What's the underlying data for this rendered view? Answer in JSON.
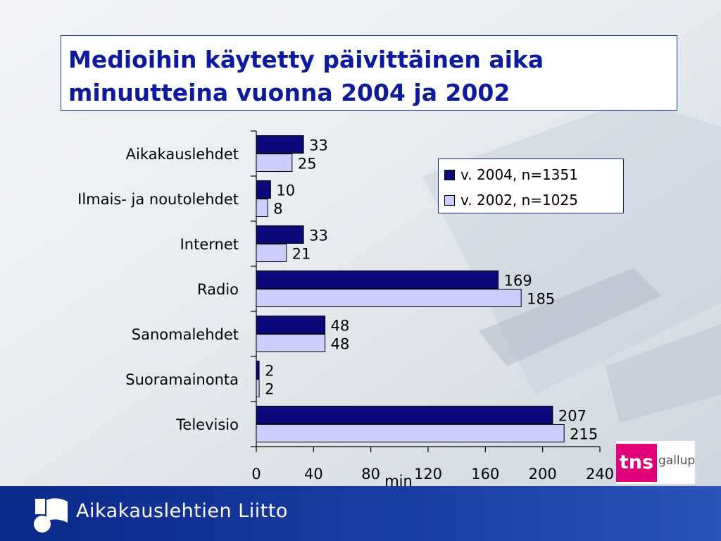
{
  "title": "Medioihin käytetty päivittäinen aika minuutteina vuonna 2004 ja 2002",
  "footer": {
    "org_name": "Aikakauslehtien Liitto"
  },
  "logo": {
    "tns_mark": "tns",
    "tns_word": "gallup",
    "tns_color": "#e2007a"
  },
  "colors": {
    "title": "#0d1a9e",
    "series_2004": "#0a0a7a",
    "series_2002": "#ccccff"
  },
  "chart_data": {
    "type": "bar",
    "orientation": "horizontal",
    "categories": [
      "Aikakauslehdet",
      "Ilmais- ja noutolehdet",
      "Internet",
      "Radio",
      "Sanomalehdet",
      "Suoramainonta",
      "Televisio"
    ],
    "series": [
      {
        "name": "v. 2004, n=1351",
        "values": [
          33,
          10,
          33,
          169,
          48,
          2,
          207
        ]
      },
      {
        "name": "v. 2002, n=1025",
        "values": [
          25,
          8,
          21,
          185,
          48,
          2,
          215
        ]
      }
    ],
    "xlabel": "min",
    "ylabel": "",
    "xlim": [
      0,
      240
    ],
    "xticks": [
      0,
      40,
      80,
      120,
      160,
      200,
      240
    ],
    "grid": false,
    "legend": "top-right"
  }
}
